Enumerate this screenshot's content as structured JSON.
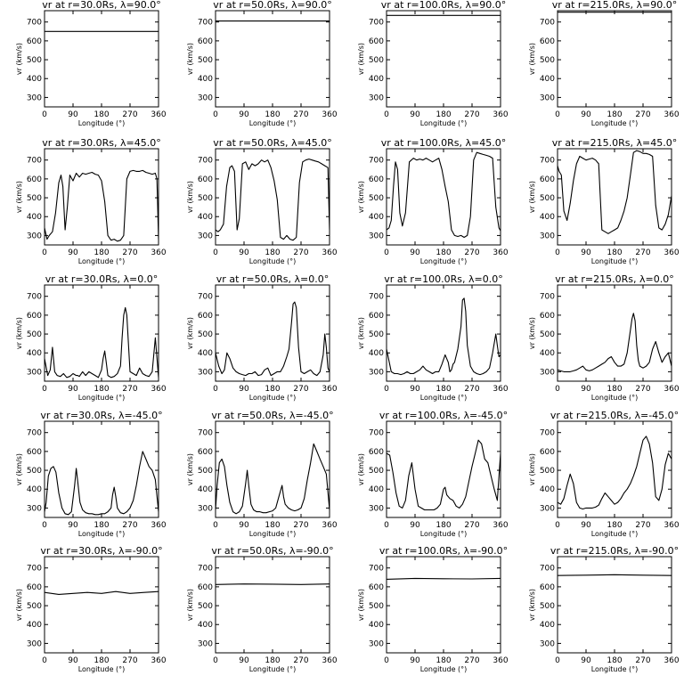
{
  "figure": {
    "xlabel": "Longitude (°)",
    "ylabel": "vr (km/s)",
    "xlim": [
      0,
      360
    ],
    "ylim": [
      250,
      760
    ],
    "xticks": [
      "0",
      "90",
      "180",
      "270",
      "360"
    ],
    "yticks": [
      "300",
      "400",
      "500",
      "600",
      "700"
    ]
  },
  "chart_data": [
    {
      "type": "line",
      "title": "vr at r=30.0Rs, λ=90.0°",
      "x": [
        0,
        360
      ],
      "y": [
        650,
        650
      ]
    },
    {
      "type": "line",
      "title": "vr at r=50.0Rs, λ=90.0°",
      "x": [
        0,
        360
      ],
      "y": [
        705,
        705
      ]
    },
    {
      "type": "line",
      "title": "vr at r=100.0Rs, λ=90.0°",
      "x": [
        0,
        360
      ],
      "y": [
        735,
        735
      ]
    },
    {
      "type": "line",
      "title": "vr at r=215.0Rs, λ=90.0°",
      "x": [
        0,
        360
      ],
      "y": [
        752,
        752
      ]
    },
    {
      "type": "line",
      "title": "vr at r=30.0Rs, λ=45.0°",
      "x": [
        0,
        8,
        15,
        25,
        35,
        45,
        52,
        58,
        65,
        72,
        80,
        90,
        100,
        110,
        120,
        130,
        140,
        150,
        160,
        170,
        180,
        190,
        200,
        210,
        220,
        230,
        240,
        250,
        260,
        270,
        280,
        290,
        300,
        310,
        320,
        330,
        340,
        350,
        355,
        360
      ],
      "y": [
        340,
        280,
        300,
        320,
        420,
        580,
        620,
        560,
        330,
        450,
        620,
        590,
        630,
        610,
        630,
        625,
        630,
        635,
        625,
        620,
        590,
        480,
        300,
        275,
        280,
        270,
        275,
        300,
        600,
        640,
        645,
        640,
        640,
        645,
        635,
        630,
        625,
        630,
        600,
        280
      ]
    },
    {
      "type": "line",
      "title": "vr at r=50.0Rs, λ=45.0°",
      "x": [
        0,
        8,
        15,
        25,
        35,
        45,
        52,
        60,
        68,
        75,
        85,
        95,
        105,
        115,
        125,
        135,
        145,
        155,
        165,
        175,
        185,
        195,
        205,
        215,
        225,
        235,
        245,
        255,
        265,
        275,
        285,
        295,
        305,
        315,
        325,
        335,
        345,
        355,
        360
      ],
      "y": [
        330,
        320,
        330,
        360,
        560,
        660,
        670,
        640,
        330,
        390,
        680,
        690,
        650,
        680,
        670,
        680,
        700,
        690,
        700,
        660,
        590,
        490,
        290,
        280,
        300,
        280,
        275,
        290,
        580,
        690,
        700,
        705,
        700,
        695,
        690,
        680,
        670,
        660,
        330
      ]
    },
    {
      "type": "line",
      "title": "vr at r=100.0Rs, λ=45.0°",
      "x": [
        0,
        8,
        15,
        22,
        28,
        35,
        42,
        50,
        60,
        72,
        85,
        95,
        105,
        115,
        125,
        135,
        145,
        155,
        165,
        175,
        185,
        195,
        205,
        215,
        225,
        235,
        245,
        255,
        265,
        275,
        285,
        295,
        305,
        315,
        325,
        335,
        345,
        355,
        360
      ],
      "y": [
        330,
        340,
        380,
        560,
        690,
        650,
        420,
        350,
        420,
        690,
        710,
        700,
        705,
        700,
        710,
        700,
        690,
        700,
        710,
        650,
        560,
        480,
        330,
        300,
        295,
        300,
        290,
        300,
        400,
        700,
        740,
        735,
        730,
        725,
        720,
        710,
        450,
        340,
        325
      ]
    },
    {
      "type": "line",
      "title": "vr at r=215.0Rs, λ=45.0°",
      "x": [
        0,
        5,
        12,
        20,
        30,
        40,
        50,
        60,
        70,
        80,
        90,
        100,
        110,
        120,
        130,
        140,
        150,
        160,
        170,
        180,
        190,
        200,
        210,
        220,
        230,
        240,
        250,
        260,
        270,
        280,
        290,
        300,
        310,
        320,
        330,
        340,
        350,
        360
      ],
      "y": [
        670,
        640,
        620,
        430,
        380,
        470,
        590,
        680,
        720,
        710,
        700,
        705,
        710,
        700,
        680,
        330,
        320,
        310,
        320,
        330,
        340,
        380,
        430,
        500,
        620,
        740,
        750,
        745,
        735,
        735,
        730,
        720,
        460,
        340,
        330,
        360,
        410,
        510
      ]
    },
    {
      "type": "line",
      "title": "vr at r=30.0Rs, λ=0.0°",
      "x": [
        0,
        10,
        18,
        25,
        32,
        40,
        50,
        60,
        70,
        80,
        90,
        100,
        105,
        110,
        120,
        130,
        140,
        150,
        160,
        170,
        180,
        185,
        190,
        195,
        200,
        210,
        220,
        230,
        240,
        245,
        250,
        255,
        260,
        265,
        270,
        280,
        290,
        300,
        310,
        320,
        330,
        340,
        350,
        360
      ],
      "y": [
        370,
        280,
        310,
        430,
        300,
        280,
        275,
        290,
        270,
        275,
        290,
        280,
        280,
        275,
        300,
        280,
        300,
        290,
        280,
        270,
        310,
        370,
        410,
        350,
        280,
        270,
        275,
        290,
        330,
        480,
        600,
        640,
        600,
        450,
        300,
        290,
        280,
        320,
        290,
        280,
        275,
        300,
        480,
        270
      ]
    },
    {
      "type": "line",
      "title": "vr at r=50.0Rs, λ=0.0°",
      "x": [
        0,
        10,
        20,
        28,
        36,
        45,
        55,
        65,
        75,
        85,
        95,
        105,
        115,
        125,
        135,
        145,
        155,
        165,
        175,
        185,
        195,
        205,
        215,
        225,
        232,
        240,
        245,
        250,
        255,
        262,
        270,
        280,
        290,
        300,
        310,
        320,
        330,
        340,
        345,
        350,
        355,
        360
      ],
      "y": [
        400,
        330,
        290,
        310,
        400,
        370,
        320,
        300,
        290,
        285,
        280,
        290,
        290,
        300,
        280,
        285,
        310,
        320,
        280,
        290,
        300,
        300,
        330,
        380,
        420,
        560,
        660,
        670,
        640,
        430,
        300,
        290,
        300,
        310,
        290,
        280,
        300,
        390,
        500,
        430,
        320,
        300
      ]
    },
    {
      "type": "line",
      "title": "vr at r=100.0Rs, λ=0.0°",
      "x": [
        0,
        5,
        15,
        25,
        35,
        45,
        55,
        65,
        75,
        85,
        95,
        105,
        115,
        125,
        135,
        145,
        155,
        165,
        175,
        185,
        195,
        200,
        205,
        210,
        215,
        225,
        235,
        240,
        245,
        250,
        255,
        265,
        275,
        285,
        295,
        305,
        315,
        325,
        335,
        345,
        350,
        355,
        360
      ],
      "y": [
        420,
        380,
        300,
        290,
        290,
        285,
        290,
        300,
        290,
        290,
        300,
        310,
        330,
        310,
        300,
        290,
        300,
        300,
        340,
        390,
        350,
        300,
        310,
        340,
        350,
        420,
        540,
        680,
        690,
        620,
        440,
        330,
        300,
        290,
        285,
        290,
        300,
        320,
        400,
        500,
        440,
        380,
        390
      ]
    },
    {
      "type": "line",
      "title": "vr at r=215.0Rs, λ=0.0°",
      "x": [
        0,
        10,
        20,
        30,
        40,
        50,
        60,
        70,
        80,
        90,
        100,
        110,
        120,
        130,
        140,
        150,
        160,
        170,
        180,
        190,
        200,
        210,
        220,
        225,
        230,
        235,
        240,
        245,
        250,
        255,
        260,
        270,
        280,
        290,
        300,
        310,
        320,
        330,
        340,
        350,
        360
      ],
      "y": [
        310,
        305,
        300,
        300,
        300,
        305,
        310,
        320,
        330,
        310,
        305,
        310,
        320,
        330,
        340,
        350,
        370,
        380,
        350,
        330,
        330,
        340,
        400,
        460,
        520,
        580,
        610,
        570,
        440,
        360,
        330,
        320,
        330,
        350,
        420,
        460,
        400,
        350,
        380,
        400,
        330
      ]
    },
    {
      "type": "line",
      "title": "vr at r=30.0Rs, λ=-45.0°",
      "x": [
        0,
        5,
        12,
        20,
        28,
        36,
        45,
        55,
        65,
        75,
        85,
        95,
        100,
        105,
        112,
        120,
        130,
        140,
        150,
        160,
        170,
        180,
        190,
        200,
        210,
        215,
        220,
        225,
        230,
        240,
        250,
        260,
        270,
        280,
        290,
        300,
        310,
        320,
        330,
        340,
        350,
        360
      ],
      "y": [
        280,
        330,
        470,
        510,
        520,
        490,
        380,
        300,
        270,
        265,
        280,
        420,
        510,
        440,
        330,
        290,
        275,
        270,
        270,
        265,
        265,
        270,
        270,
        280,
        300,
        370,
        410,
        360,
        300,
        275,
        270,
        280,
        300,
        340,
        420,
        520,
        600,
        560,
        520,
        500,
        450,
        280
      ]
    },
    {
      "type": "line",
      "title": "vr at r=50.0Rs, λ=-45.0°",
      "x": [
        0,
        5,
        12,
        20,
        28,
        36,
        45,
        55,
        65,
        75,
        85,
        95,
        100,
        105,
        112,
        120,
        130,
        140,
        150,
        160,
        170,
        180,
        190,
        200,
        210,
        215,
        220,
        230,
        240,
        250,
        260,
        270,
        280,
        290,
        300,
        310,
        320,
        330,
        340,
        350,
        360
      ],
      "y": [
        290,
        420,
        540,
        560,
        520,
        420,
        330,
        280,
        270,
        280,
        310,
        430,
        500,
        420,
        320,
        290,
        280,
        280,
        275,
        275,
        280,
        285,
        300,
        360,
        420,
        360,
        320,
        300,
        290,
        285,
        290,
        300,
        350,
        450,
        540,
        640,
        600,
        560,
        520,
        480,
        290
      ]
    },
    {
      "type": "line",
      "title": "vr at r=100.0Rs, λ=-45.0°",
      "x": [
        0,
        10,
        20,
        30,
        40,
        50,
        60,
        70,
        80,
        90,
        100,
        110,
        120,
        130,
        140,
        150,
        160,
        170,
        180,
        185,
        190,
        200,
        210,
        220,
        230,
        240,
        250,
        260,
        270,
        280,
        290,
        300,
        310,
        320,
        330,
        340,
        350,
        360
      ],
      "y": [
        590,
        580,
        490,
        380,
        310,
        300,
        340,
        470,
        540,
        400,
        310,
        300,
        290,
        290,
        290,
        290,
        300,
        320,
        400,
        410,
        370,
        350,
        340,
        310,
        300,
        320,
        360,
        440,
        520,
        590,
        660,
        640,
        560,
        540,
        470,
        400,
        340,
        590
      ]
    },
    {
      "type": "line",
      "title": "vr at r=215.0Rs, λ=-45.0°",
      "x": [
        0,
        10,
        20,
        30,
        40,
        50,
        60,
        70,
        80,
        90,
        100,
        110,
        120,
        130,
        140,
        150,
        160,
        170,
        180,
        190,
        200,
        210,
        220,
        230,
        240,
        250,
        260,
        270,
        280,
        290,
        300,
        310,
        320,
        330,
        340,
        350,
        360
      ],
      "y": [
        330,
        320,
        350,
        420,
        480,
        430,
        330,
        300,
        295,
        300,
        300,
        300,
        305,
        315,
        350,
        380,
        360,
        340,
        320,
        330,
        350,
        380,
        400,
        430,
        470,
        520,
        590,
        660,
        680,
        640,
        540,
        360,
        340,
        400,
        530,
        590,
        560
      ]
    },
    {
      "type": "line",
      "title": "vr at r=30.0Rs, λ=-90.0°",
      "x": [
        0,
        45,
        90,
        135,
        180,
        225,
        270,
        315,
        360
      ],
      "y": [
        570,
        560,
        565,
        570,
        565,
        575,
        565,
        570,
        575
      ]
    },
    {
      "type": "line",
      "title": "vr at r=50.0Rs, λ=-90.0°",
      "x": [
        0,
        90,
        180,
        270,
        360
      ],
      "y": [
        612,
        615,
        614,
        612,
        615
      ]
    },
    {
      "type": "line",
      "title": "vr at r=100.0Rs, λ=-90.0°",
      "x": [
        0,
        90,
        180,
        270,
        360
      ],
      "y": [
        640,
        645,
        643,
        642,
        645
      ]
    },
    {
      "type": "line",
      "title": "vr at r=215.0Rs, λ=-90.0°",
      "x": [
        0,
        90,
        180,
        270,
        360
      ],
      "y": [
        660,
        662,
        664,
        662,
        660
      ]
    }
  ]
}
